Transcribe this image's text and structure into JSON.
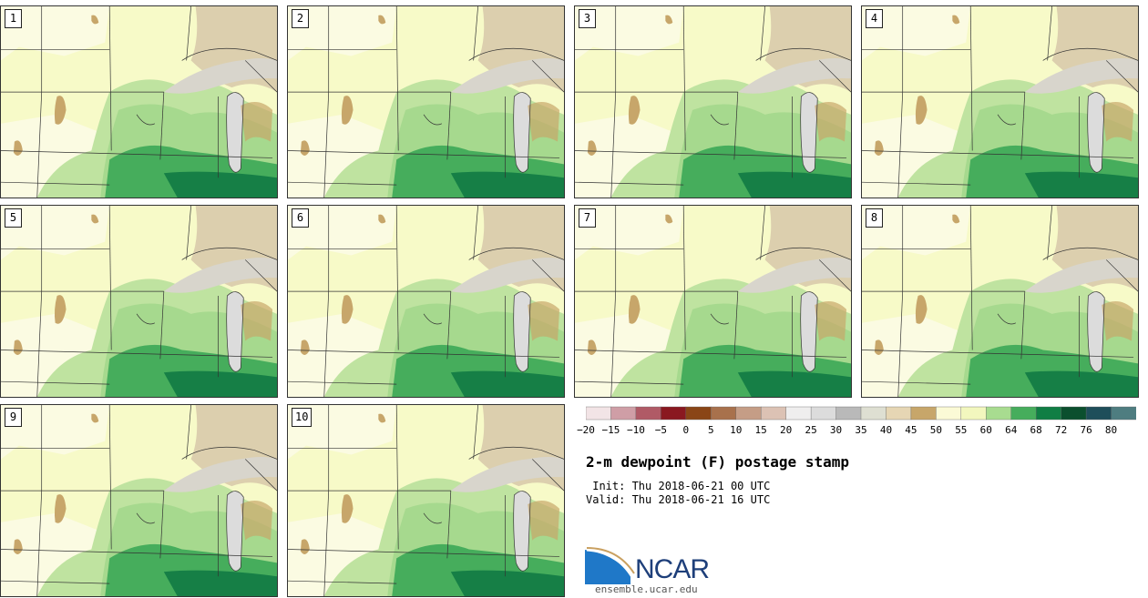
{
  "panels": [
    {
      "label": "1"
    },
    {
      "label": "2"
    },
    {
      "label": "3"
    },
    {
      "label": "4"
    },
    {
      "label": "5"
    },
    {
      "label": "6"
    },
    {
      "label": "7"
    },
    {
      "label": "8"
    },
    {
      "label": "9"
    },
    {
      "label": "10"
    }
  ],
  "colorbar": {
    "ticks": [
      "−20",
      "−15",
      "−10",
      "−5",
      "0",
      "5",
      "10",
      "15",
      "20",
      "25",
      "30",
      "35",
      "40",
      "45",
      "50",
      "55",
      "60",
      "64",
      "68",
      "72",
      "76",
      "80"
    ],
    "colors": [
      "#f2e4e6",
      "#cf9ea6",
      "#b05a66",
      "#8a1820",
      "#8a4516",
      "#a8714c",
      "#c59d86",
      "#dcc2b4",
      "#efeeee",
      "#dcdcdc",
      "#b9b9b9",
      "#dedfd2",
      "#e6d6b4",
      "#c7a66a",
      "#fbfad6",
      "#f2f7be",
      "#a8dc90",
      "#46ad5c",
      "#107e44",
      "#0b4f2e",
      "#1e4e5a",
      "#4e7d80"
    ]
  },
  "title": "2-m dewpoint (F) postage stamp",
  "init_line": " Init: Thu 2018-06-21 00 UTC",
  "valid_line": "Valid: Thu 2018-06-21 16 UTC",
  "logo": {
    "text": "NCAR",
    "url": "ensemble.ucar.edu"
  }
}
